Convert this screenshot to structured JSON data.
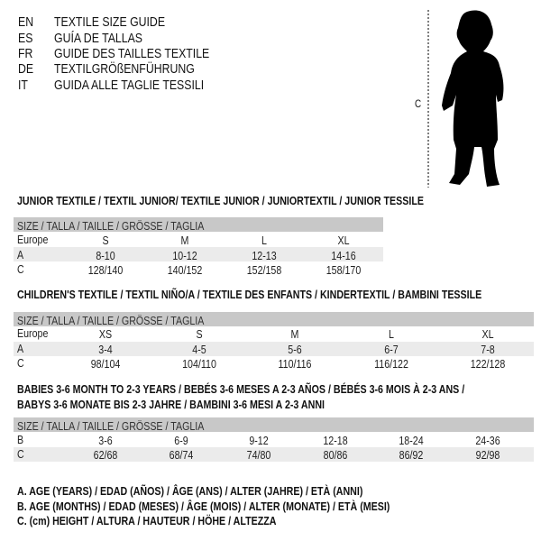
{
  "languages": [
    {
      "code": "EN",
      "name": "TEXTILE SIZE GUIDE"
    },
    {
      "code": "ES",
      "name": "GUÍA DE TALLAS"
    },
    {
      "code": "FR",
      "name": "GUIDE DES TAILLES TEXTILE"
    },
    {
      "code": "DE",
      "name": "TEXTILGRÖßENFÜHRUNG"
    },
    {
      "code": "IT",
      "name": "GUIDA ALLE TAGLIE TESSILI"
    }
  ],
  "figure": {
    "measure_label": "C",
    "icon": "child-silhouette-icon"
  },
  "header_label": "SIZE / TALLA / TAILLE / GRÖSSE / TAGLIA",
  "junior": {
    "title": "JUNIOR TEXTILE / TEXTIL JUNIOR/ TEXTILE JUNIOR / JUNIORTEXTIL / JUNIOR TESSILE",
    "rows": [
      {
        "label": "Europe",
        "values": [
          "S",
          "M",
          "L",
          "XL"
        ]
      },
      {
        "label": "A",
        "values": [
          "8-10",
          "10-12",
          "12-13",
          "14-16"
        ]
      },
      {
        "label": "C",
        "values": [
          "128/140",
          "140/152",
          "152/158",
          "158/170"
        ]
      }
    ]
  },
  "children": {
    "title": "CHILDREN'S TEXTILE / TEXTIL NIÑO/A / TEXTILE DES ENFANTS / KINDERTEXTIL / BAMBINI TESSILE",
    "rows": [
      {
        "label": "Europe",
        "values": [
          "XS",
          "S",
          "M",
          "L",
          "XL"
        ]
      },
      {
        "label": "A",
        "values": [
          "3-4",
          "4-5",
          "5-6",
          "6-7",
          "7-8"
        ]
      },
      {
        "label": "C",
        "values": [
          "98/104",
          "104/110",
          "110/116",
          "116/122",
          "122/128"
        ]
      }
    ]
  },
  "babies": {
    "title_line1": "BABIES 3-6 MONTH TO 2-3 YEARS / BEBÉS 3-6 MESES A 2-3 AÑOS / BÉBÉS 3-6 MOIS À 2-3 ANS /",
    "title_line2": "BABYS 3-6 MONATE BIS 2-3 JAHRE / BAMBINI 3-6 MESI A 2-3 ANNI",
    "rows": [
      {
        "label": "B",
        "values": [
          "3-6",
          "6-9",
          "9-12",
          "12-18",
          "18-24",
          "24-36"
        ]
      },
      {
        "label": "C",
        "values": [
          "62/68",
          "68/74",
          "74/80",
          "80/86",
          "86/92",
          "92/98"
        ]
      }
    ]
  },
  "legend": [
    "A. AGE (YEARS) / EDAD (AÑOS) / ÂGE (ANS) / ALTER (JAHRE) / ETÀ (ANNI)",
    "B. AGE (MONTHS) / EDAD (MESES) / ÂGE (MOIS) / ALTER (MONATE) / ETÀ (MESI)",
    "C. (cm) HEIGHT / ALTURA / HAUTEUR / HÖHE / ALTEZZA"
  ],
  "colors": {
    "header_bg": "#c8c8c8",
    "row_shade": "#ebebeb"
  }
}
